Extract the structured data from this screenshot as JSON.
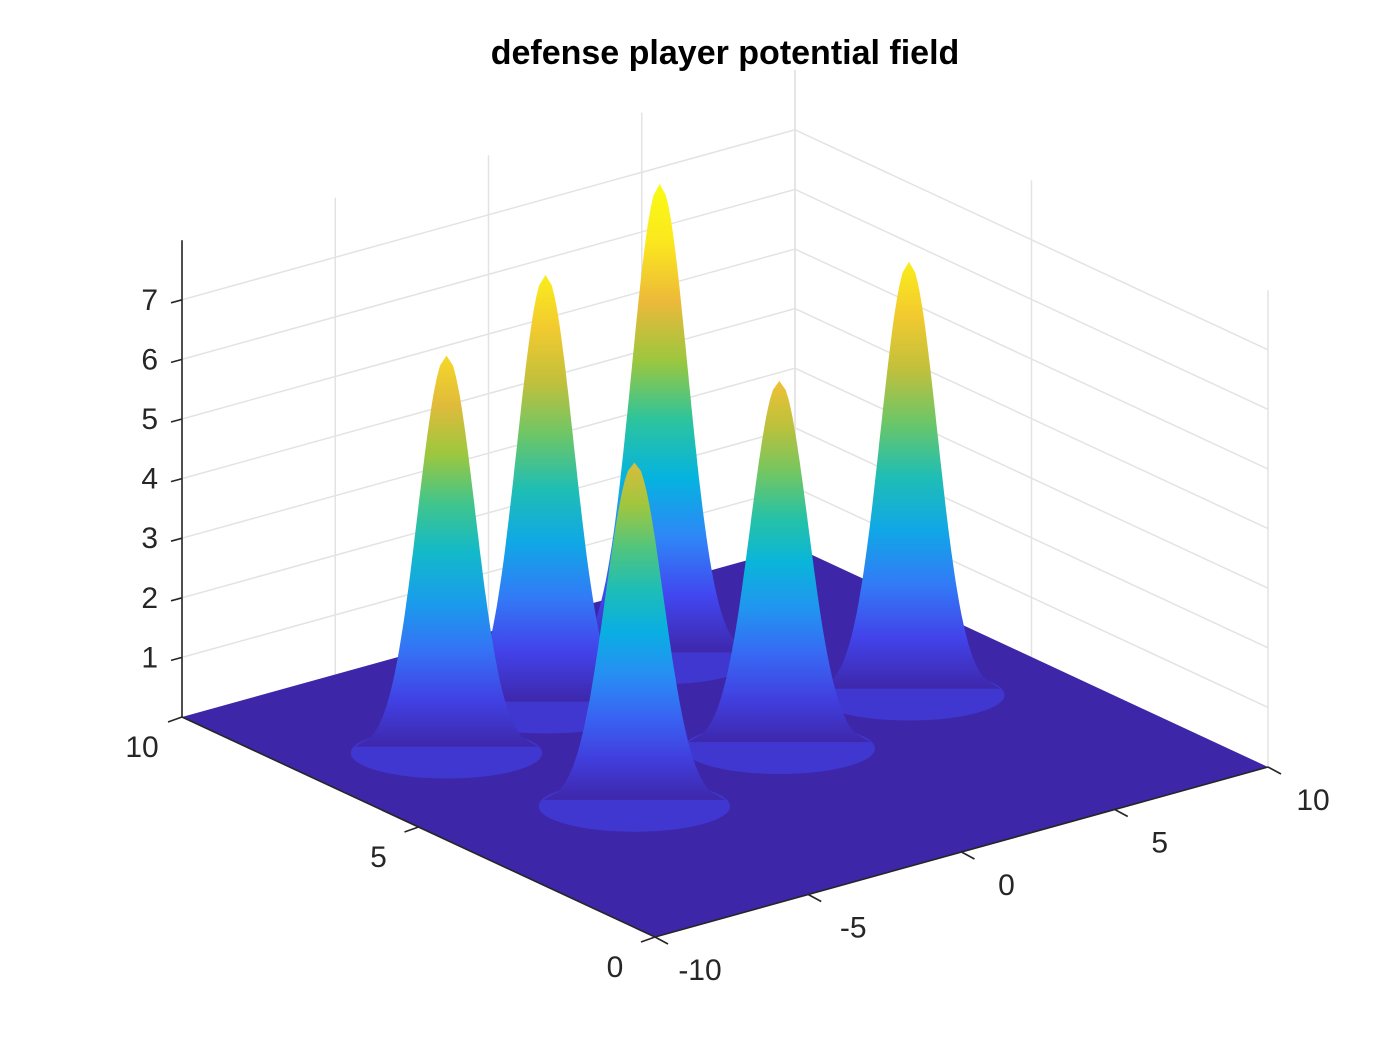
{
  "chart_data": {
    "type": "surface",
    "title": "defense player potential field",
    "xlabel": "",
    "ylabel": "",
    "zlabel": "",
    "colormap": "parula",
    "colormap_stops": [
      "#3e26a8",
      "#4246f0",
      "#2e87f7",
      "#05b3e0",
      "#2dc49c",
      "#9cc73e",
      "#ecb93a",
      "#fbe71e",
      "#f9fb15"
    ],
    "grid": true,
    "x_range": [
      -10,
      10
    ],
    "y_range": [
      0,
      10
    ],
    "z_range": [
      0,
      8
    ],
    "x_ticks": [
      -10,
      -5,
      0,
      5,
      10
    ],
    "y_ticks": [
      0,
      5,
      10
    ],
    "z_ticks": [
      1,
      2,
      3,
      4,
      5,
      6,
      7
    ],
    "peaks": [
      {
        "x": -6.0,
        "y": 7.0,
        "height": 6.6
      },
      {
        "x": -2.0,
        "y": 7.5,
        "height": 7.2
      },
      {
        "x": 2.5,
        "y": 8.0,
        "height": 7.9
      },
      {
        "x": -4.5,
        "y": 4.0,
        "height": 5.7
      },
      {
        "x": 1.0,
        "y": 4.5,
        "height": 6.1
      },
      {
        "x": 6.0,
        "y": 5.0,
        "height": 7.2
      }
    ]
  }
}
